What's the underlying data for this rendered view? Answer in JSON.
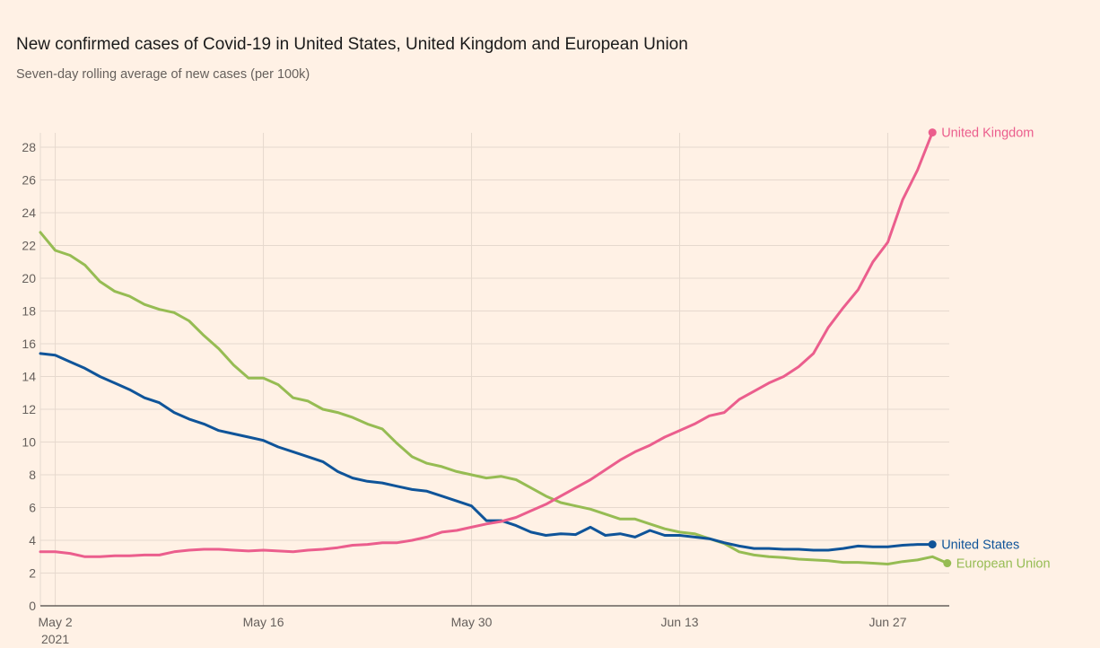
{
  "title": "New confirmed cases of Covid-19 in United States, United Kingdom and European Union",
  "subtitle": "Seven-day rolling average of new cases (per 100k)",
  "chart_data": {
    "type": "line",
    "title": "New confirmed cases of Covid-19 in United States, United Kingdom and European Union",
    "subtitle": "Seven-day rolling average of new cases (per 100k)",
    "xlabel": "",
    "ylabel": "",
    "x_start": "2021-05-01",
    "x_unit": "day",
    "xlim_days": [
      0,
      61
    ],
    "ylim": [
      0,
      28
    ],
    "yticks": [
      0,
      2,
      4,
      6,
      8,
      10,
      12,
      14,
      16,
      18,
      20,
      22,
      24,
      26,
      28
    ],
    "xticks": [
      {
        "day": 1,
        "label": "May 2",
        "sublabel": "2021"
      },
      {
        "day": 15,
        "label": "May 16"
      },
      {
        "day": 29,
        "label": "May 30"
      },
      {
        "day": 43,
        "label": "Jun 13"
      },
      {
        "day": 57,
        "label": "Jun 27"
      }
    ],
    "grid": true,
    "legend": "direct-labels-at-line-ends",
    "series": [
      {
        "name": "United Kingdom",
        "color": "#eb5e8d",
        "values": [
          3.3,
          3.3,
          3.2,
          3.0,
          3.0,
          3.05,
          3.05,
          3.1,
          3.1,
          3.3,
          3.4,
          3.45,
          3.45,
          3.4,
          3.35,
          3.4,
          3.35,
          3.3,
          3.4,
          3.45,
          3.55,
          3.7,
          3.75,
          3.85,
          3.85,
          4.0,
          4.2,
          4.5,
          4.6,
          4.8,
          5.0,
          5.15,
          5.4,
          5.8,
          6.2,
          6.7,
          7.2,
          7.7,
          8.3,
          8.9,
          9.4,
          9.8,
          10.3,
          10.7,
          11.1,
          11.6,
          11.8,
          12.6,
          13.1,
          13.6,
          14.0,
          14.6,
          15.4,
          17.0,
          18.2,
          19.3,
          21.0,
          22.2,
          24.8,
          26.6,
          28.9
        ]
      },
      {
        "name": "United States",
        "color": "#0f5499",
        "values": [
          15.4,
          15.3,
          14.9,
          14.5,
          14.0,
          13.6,
          13.2,
          12.7,
          12.4,
          11.8,
          11.4,
          11.1,
          10.7,
          10.5,
          10.3,
          10.1,
          9.7,
          9.4,
          9.1,
          8.8,
          8.2,
          7.8,
          7.6,
          7.5,
          7.3,
          7.1,
          7.0,
          6.7,
          6.4,
          6.1,
          5.2,
          5.2,
          4.9,
          4.5,
          4.3,
          4.4,
          4.35,
          4.8,
          4.3,
          4.4,
          4.2,
          4.6,
          4.3,
          4.3,
          4.2,
          4.1,
          3.85,
          3.65,
          3.5,
          3.5,
          3.45,
          3.45,
          3.4,
          3.4,
          3.5,
          3.65,
          3.6,
          3.6,
          3.7,
          3.75,
          3.75
        ]
      },
      {
        "name": "European Union",
        "color": "#96bc53",
        "values": [
          22.8,
          21.7,
          21.4,
          20.8,
          19.8,
          19.2,
          18.9,
          18.4,
          18.1,
          17.9,
          17.4,
          16.5,
          15.7,
          14.7,
          13.9,
          13.9,
          13.5,
          12.7,
          12.5,
          12.0,
          11.8,
          11.5,
          11.1,
          10.8,
          9.9,
          9.1,
          8.7,
          8.5,
          8.2,
          8.0,
          7.8,
          7.9,
          7.7,
          7.2,
          6.7,
          6.3,
          6.1,
          5.9,
          5.6,
          5.3,
          5.3,
          5.0,
          4.7,
          4.5,
          4.4,
          4.1,
          3.8,
          3.3,
          3.1,
          3.0,
          2.95,
          2.85,
          2.8,
          2.75,
          2.65,
          2.65,
          2.6,
          2.55,
          2.7,
          2.8,
          3.0,
          2.6
        ]
      }
    ]
  }
}
